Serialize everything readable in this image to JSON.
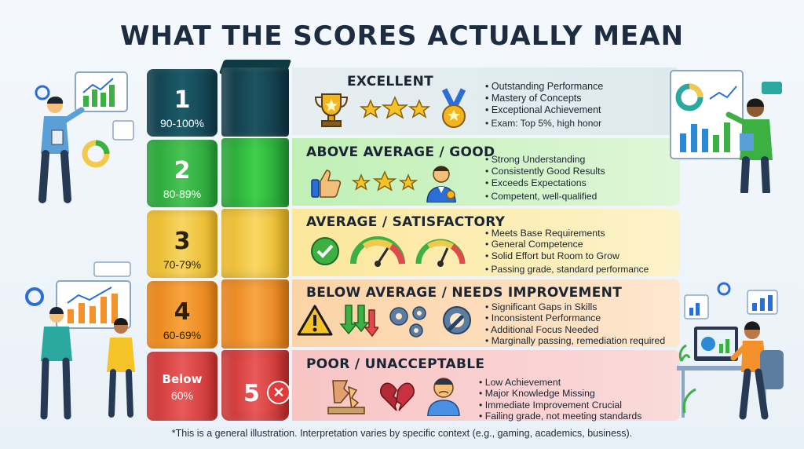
{
  "title": "WHAT THE SCORES ACTUALLY MEAN",
  "footnote": "*This is a general illustration. Interpretation varies by specific context (e.g., gaming, academics, business).",
  "scores": [
    {
      "num": "1",
      "range": "90-100%"
    },
    {
      "num": "2",
      "range": "80-89%"
    },
    {
      "num": "3",
      "range": "70-79%"
    },
    {
      "num": "4",
      "range": "60-69%"
    },
    {
      "num": "Below",
      "range": "60%"
    }
  ],
  "level5": "5",
  "rows": [
    {
      "heading": "EXCELLENT",
      "items": [
        "Outstanding Performance",
        "Mastery of Concepts",
        "Exceptional Achievement"
      ],
      "note": "Exam: Top 5%, high honor"
    },
    {
      "heading": "ABOVE AVERAGE / GOOD",
      "items": [
        "Strong Understanding",
        "Consistently Good Results",
        "Exceeds Expectations"
      ],
      "note": "Competent, well-qualified"
    },
    {
      "heading": "AVERAGE / SATISFACTORY",
      "items": [
        "Meets Base Requirements",
        "General Competence",
        "Solid Effort but Room to Grow"
      ],
      "note": "Passing grade, standard performance"
    },
    {
      "heading": "BELOW AVERAGE / NEEDS IMPROVEMENT",
      "items": [
        "Significant Gaps in Skills",
        "Inconsistent Performance",
        "Additional Focus Needed"
      ],
      "note": "Marginally passing, remediation required"
    },
    {
      "heading": "POOR / UNACCEPTABLE",
      "items": [
        "Low Achievement",
        "Major Knowledge Missing",
        "Immediate Improvement Crucial"
      ],
      "note": "Failing grade, not meeting standards"
    }
  ],
  "colors": {
    "excellent": "#1b4a57",
    "good": "#3cb043",
    "average": "#f2c94c",
    "below": "#f5912a",
    "poor": "#e14a4a"
  }
}
